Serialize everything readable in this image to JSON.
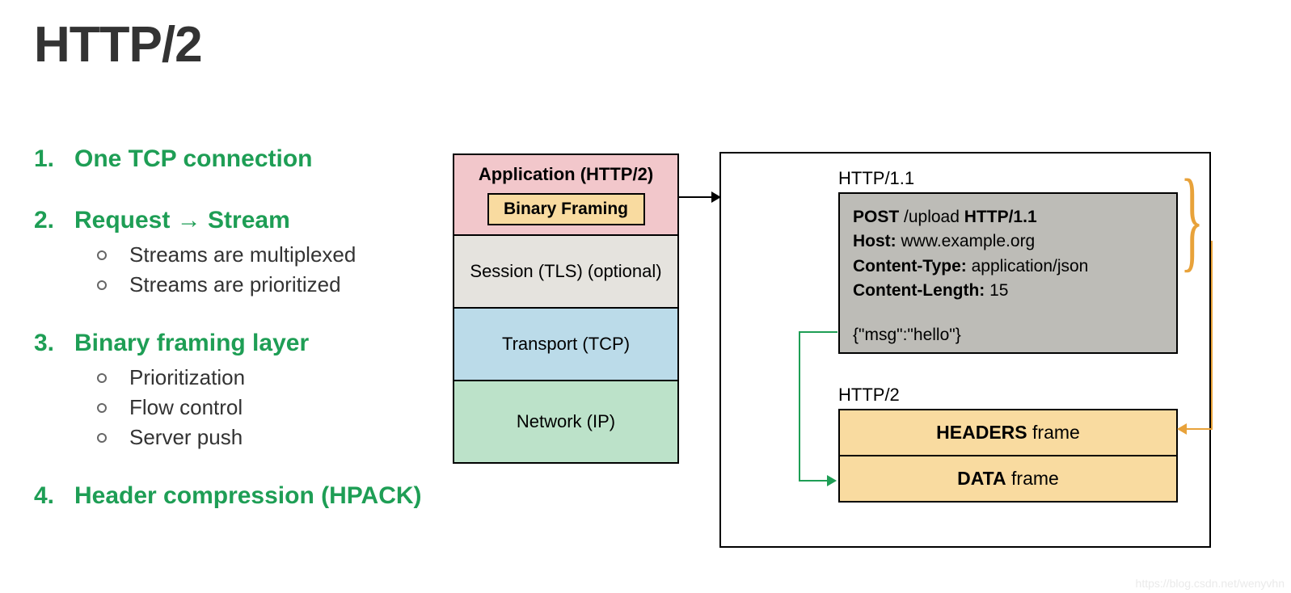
{
  "title": "HTTP/2",
  "colors": {
    "accent_green": "#1e9e55",
    "accent_orange": "#e8a23a",
    "layer_app_bg": "#f2c7cb",
    "layer_sess_bg": "#e5e3de",
    "layer_trans_bg": "#bbdbe9",
    "layer_net_bg": "#bce2c9",
    "frame_bg": "#f9dba0",
    "req_bg": "#bdbcb7",
    "text_dark": "#333333",
    "border": "#000000",
    "background": "#ffffff"
  },
  "typography": {
    "title_fontsize": 62,
    "list_fontsize": 30,
    "sublist_fontsize": 26,
    "diagram_fontsize": 22,
    "font_family": "Helvetica Neue Condensed / Arial"
  },
  "list": {
    "items": [
      {
        "num": "1.",
        "text": "One TCP connection",
        "subs": []
      },
      {
        "num": "2.",
        "text": "Request → Stream",
        "subs": [
          "Streams are multiplexed",
          "Streams are prioritized"
        ]
      },
      {
        "num": "3.",
        "text": "Binary framing layer",
        "subs": [
          "Prioritization",
          "Flow control",
          "Server push"
        ]
      },
      {
        "num": "4.",
        "text": "Header compression (HPACK)",
        "subs": []
      }
    ]
  },
  "stack": {
    "type": "layer-diagram",
    "layers": [
      {
        "label": "Application (HTTP/2)",
        "inner": "Binary Framing",
        "bg": "#f2c7cb",
        "bold": true
      },
      {
        "label": "Session (TLS) (optional)",
        "bg": "#e5e3de",
        "bold": false
      },
      {
        "label": "Transport (TCP)",
        "bg": "#bbdbe9",
        "bold": false
      },
      {
        "label": "Network (IP)",
        "bg": "#bce2c9",
        "bold": false
      }
    ]
  },
  "right": {
    "http11_label": "HTTP/1.1",
    "http2_label": "HTTP/2",
    "request": {
      "line1_pre": "POST",
      "line1_mid": " /upload ",
      "line1_post": "HTTP/1.1",
      "line2_k": "Host:",
      "line2_v": " www.example.org",
      "line3_k": "Content-Type:",
      "line3_v": " application/json",
      "line4_k": "Content-Length:",
      "line4_v": " 15",
      "body": "{\"msg\":\"hello\"}"
    },
    "frames": {
      "headers_b": "HEADERS",
      "headers_r": " frame",
      "data_b": "DATA",
      "data_r": " frame"
    }
  },
  "arrows": {
    "black": {
      "from": "stack.application",
      "to": "rightbox",
      "color": "#000000"
    },
    "orange": {
      "from": "http11_headers_brace",
      "to": "headers_frame",
      "color": "#e8a23a"
    },
    "green": {
      "from": "http11_body",
      "to": "data_frame",
      "color": "#1e9e55"
    }
  },
  "watermark": "https://blog.csdn.net/wenyvhn"
}
